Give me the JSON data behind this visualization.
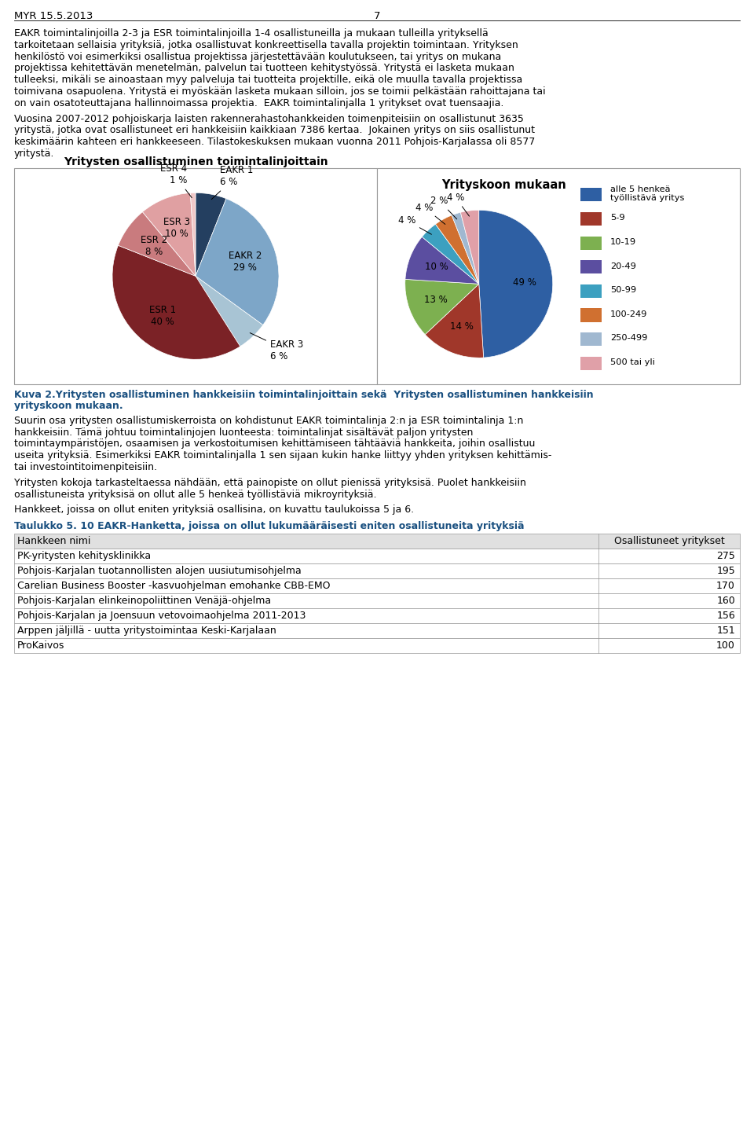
{
  "page_header": "MYR 15.5.2013",
  "page_number": "7",
  "paragraph1_lines": [
    "EAKR toimintalinjoilla 2-3 ja ESR toimintalinjoilla 1-4 osallistuneilla ja mukaan tulleilla yrityksellä",
    "tarkoitetaan sellaisia yrityksiä, jotka osallistuvat konkreettisella tavalla projektin toimintaan. Yrityksen",
    "henkilöstö voi esimerkiksi osallistua projektissa järjestettävään koulutukseen, tai yritys on mukana",
    "projektissa kehitettävän menetelmän, palvelun tai tuotteen kehitystyössä. Yritystä ei lasketa mukaan",
    "tulleeksi, mikäli se ainoastaan myy palveluja tai tuotteita projektille, eikä ole muulla tavalla projektissa",
    "toimivana osapuolena. Yritystä ei myöskään lasketa mukaan silloin, jos se toimii pelkästään rahoittajana tai",
    "on vain osatoteuttajana hallinnoimassa projektia.  EAKR toimintalinjalla 1 yritykset ovat tuensaajia."
  ],
  "paragraph2_lines": [
    "Vuosina 2007-2012 pohjoiskarja laisten rakennerahastohankkeiden toimenpiteisiin on osallistunut 3635",
    "yritystä, jotka ovat osallistuneet eri hankkeisiin kaikkiaan 7386 kertaa.  Jokainen yritys on siis osallistunut",
    "keskimäärin kahteen eri hankkeeseen. Tilastokeskuksen mukaan vuonna 2011 Pohjois-Karjalassa oli 8577",
    "yritystä."
  ],
  "chart1_title": "Yritysten osallistuminen toimintalinjoittain",
  "chart1_labels": [
    "EAKR 1",
    "EAKR 2",
    "EAKR 3",
    "ESR 1",
    "ESR 2",
    "ESR 3",
    "ESR 4"
  ],
  "chart1_values": [
    6,
    29,
    6,
    40,
    8,
    10,
    1
  ],
  "chart1_colors": [
    "#243f60",
    "#7da6c8",
    "#a8c4d4",
    "#7b2226",
    "#c97b7e",
    "#e0a0a2",
    "#f0c8c8"
  ],
  "chart2_title": "Yrityskoon mukaan",
  "chart2_labels": [
    "alle 5 henkeä\ntyöllistävä yritys",
    "5-9",
    "10-19",
    "20-49",
    "50-99",
    "100-249",
    "250-499",
    "500 tai yli"
  ],
  "chart2_values": [
    49,
    14,
    13,
    10,
    4,
    4,
    2,
    4
  ],
  "chart2_colors": [
    "#2e5fa3",
    "#a0372a",
    "#7db050",
    "#5b4ea0",
    "#3ca0c0",
    "#d07030",
    "#a0b8d0",
    "#e0a0a8"
  ],
  "caption_lines": [
    "Kuva 2.Yritysten osallistuminen hankkeisiin toimintalinjoittain sekä  Yritysten osallistuminen hankkeisiin",
    "yrityskoon mukaan."
  ],
  "paragraph3_lines": [
    "Suurin osa yritysten osallistumiskerroista on kohdistunut EAKR toimintalinja 2:n ja ESR toimintalinja 1:n",
    "hankkeisiin. Tämä johtuu toimintalinjojen luonteesta: toimintalinjat sisältävät paljon yritysten",
    "toimintaympäristöjen, osaamisen ja verkostoitumisen kehittämiseen tähtääviä hankkeita, joihin osallistuu",
    "useita yrityksiä. Esimerkiksi EAKR toimintalinjalla 1 sen sijaan kukin hanke liittyy yhden yrityksen kehittämis-",
    "tai investointitoimenpiteisiin."
  ],
  "paragraph4_lines": [
    "Yritysten kokoja tarkasteltaessa nähdään, että painopiste on ollut pienissä yrityksisä. Puolet hankkeisiin",
    "osallistuneista yrityksisä on ollut alle 5 henkeä työllistäviä mikroyrityksiä."
  ],
  "paragraph5": "Hankkeet, joissa on ollut eniten yrityksiä osallisina, on kuvattu taulukoissa 5 ja 6.",
  "table_title": "Taulukko 5. 10 EAKR-Hanketta, joissa on ollut lukumääräisesti eniten osallistuneita yrityksiä",
  "table_col1": "Hankkeen nimi",
  "table_col2": "Osallistuneet yritykset",
  "table_rows": [
    [
      "PK-yritysten kehitysklinikka",
      "275"
    ],
    [
      "Pohjois-Karjalan tuotannollisten alojen uusiutumisohjelma",
      "195"
    ],
    [
      "Carelian Business Booster -kasvuohjelman emohanke CBB-EMO",
      "170"
    ],
    [
      "Pohjois-Karjalan elinkeinopoliittinen Venäjä-ohjelma",
      "160"
    ],
    [
      "Pohjois-Karjalan ja Joensuun vetovoimaohjelma 2011-2013",
      "156"
    ],
    [
      "Arppen jäljillä - uutta yritystoimintaa Keski-Karjalaan",
      "151"
    ],
    [
      "ProKaivos",
      "100"
    ]
  ]
}
